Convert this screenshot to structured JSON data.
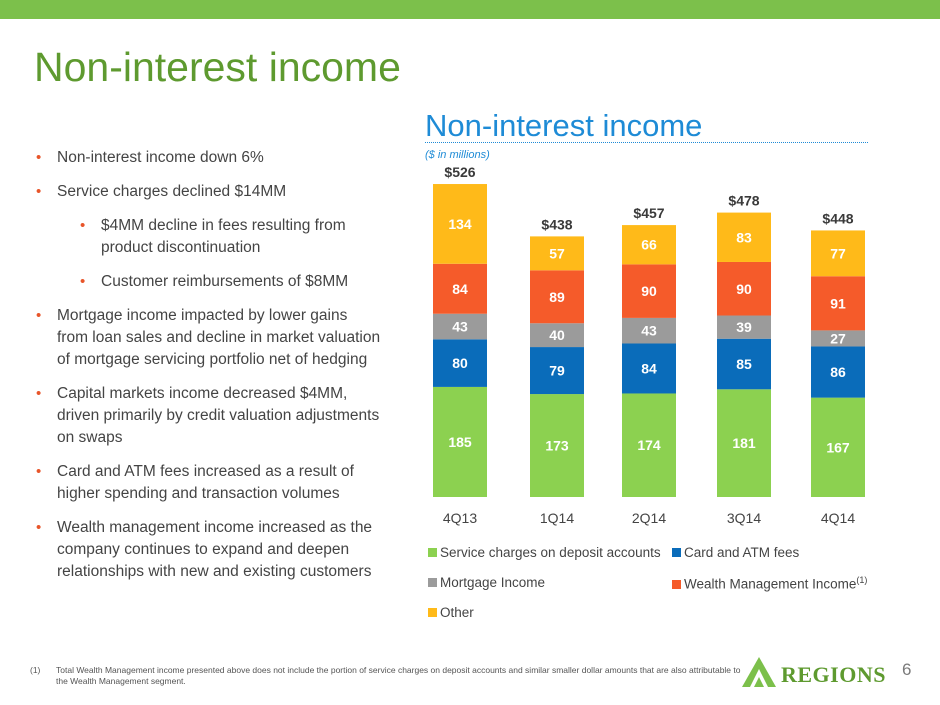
{
  "slide": {
    "title": "Non-interest income",
    "page_number": "6",
    "accent_color": "#7cc04b"
  },
  "bullets": [
    {
      "level": 1,
      "text": "Non-interest income down 6%"
    },
    {
      "level": 1,
      "text": "Service charges declined $14MM"
    },
    {
      "level": 2,
      "text": "$4MM decline in fees resulting from product discontinuation"
    },
    {
      "level": 2,
      "text": "Customer reimbursements of $8MM"
    },
    {
      "level": 1,
      "text": "Mortgage income impacted by lower gains from loan sales and decline in market valuation of mortgage servicing portfolio net of hedging"
    },
    {
      "level": 1,
      "text": "Capital markets income decreased $4MM, driven primarily by credit valuation adjustments on swaps"
    },
    {
      "level": 1,
      "text": "Card and ATM fees increased as a result of higher spending and transaction volumes"
    },
    {
      "level": 1,
      "text": "Wealth management income increased as the company continues to expand and deepen relationships with new and existing customers"
    }
  ],
  "chart_data": {
    "type": "bar",
    "stacked": true,
    "title": "Non-interest income",
    "subtitle": "($ in millions)",
    "categories": [
      "4Q13",
      "1Q14",
      "2Q14",
      "3Q14",
      "4Q14"
    ],
    "series": [
      {
        "name": "Service charges on deposit accounts",
        "color": "#8cd150",
        "values": [
          185,
          173,
          174,
          181,
          167
        ]
      },
      {
        "name": "Card and ATM fees",
        "color": "#0a6cba",
        "values": [
          80,
          79,
          84,
          85,
          86
        ]
      },
      {
        "name": "Mortgage Income",
        "color": "#9b9b9b",
        "values": [
          43,
          40,
          43,
          39,
          27
        ]
      },
      {
        "name": "Wealth Management Income",
        "color": "#f55b2a",
        "values": [
          84,
          89,
          90,
          90,
          91
        ]
      },
      {
        "name": "Other",
        "color": "#ffba19",
        "values": [
          134,
          57,
          66,
          83,
          77
        ]
      }
    ],
    "totals": [
      "$526",
      "$438",
      "$457",
      "$478",
      "$448"
    ],
    "legend_position": "bottom",
    "legend_footnote_marker": "(1)",
    "grid": false
  },
  "footnote": {
    "marker": "(1)",
    "text": "Total Wealth Management income presented above does not include the portion of service charges on deposit accounts and similar smaller dollar amounts that are also attributable to the Wealth Management segment."
  },
  "logo": {
    "text": "REGIONS",
    "icon": "regions-triangle-logo",
    "color": "#5e9a2f"
  }
}
